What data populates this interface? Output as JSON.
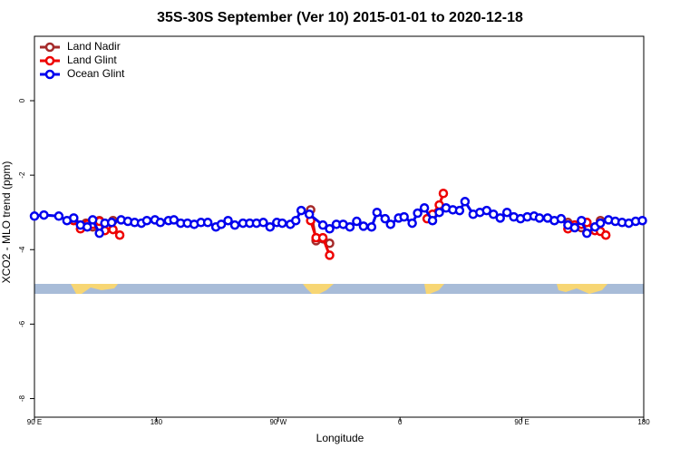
{
  "chart_data": {
    "type": "line",
    "title": "35S-30S September (Ver 10)   2015-01-01 to 2020-12-18",
    "xlabel": "Longitude",
    "ylabel": "XCO2 - MLO trend (ppm)",
    "xlim": [
      90,
      540
    ],
    "ylim": [
      -8.5,
      1.73
    ],
    "xticks": [
      {
        "value": 90,
        "label": "90 E"
      },
      180,
      {
        "value": 270,
        "label": "90 W"
      },
      {
        "value": 360,
        "label": "0"
      },
      {
        "value": 450,
        "label": "90 E"
      },
      {
        "value": 540,
        "label": "180"
      }
    ],
    "yticks": [
      0,
      -2,
      -4,
      -6,
      -8
    ],
    "legend": "top-left",
    "series": [
      {
        "name": "Land Nadir",
        "color": "#a52a2a",
        "x": [
          128,
          133,
          138,
          143,
          148,
          null,
          294,
          298,
          303,
          308,
          null,
          484,
          489,
          494,
          498,
          504,
          508
        ],
        "values": [
          -3.29,
          -3.39,
          -3.22,
          -3.39,
          -3.22,
          null,
          -2.93,
          -3.76,
          -3.71,
          -3.83,
          null,
          -3.27,
          -3.34,
          -3.41,
          -3.27,
          -3.39,
          -3.22
        ]
      },
      {
        "name": "Land Glint",
        "color": "#ee0000",
        "x": [
          119,
          124,
          129,
          133,
          138,
          142,
          148,
          153,
          null,
          294,
          298,
          303,
          308,
          null,
          380,
          384,
          389,
          392,
          null,
          484,
          489,
          494,
          498,
          504,
          508,
          512
        ],
        "values": [
          -3.22,
          -3.44,
          -3.32,
          -3.32,
          -3.24,
          -3.49,
          -3.46,
          -3.61,
          null,
          -3.22,
          -3.68,
          -3.68,
          -4.15,
          null,
          -3.17,
          -3.05,
          -2.8,
          -2.49,
          null,
          -3.44,
          -3.34,
          -3.32,
          -3.27,
          -3.49,
          -3.51,
          -3.61
        ]
      },
      {
        "name": "Ocean Glint",
        "color": "#0000ee",
        "x": [
          90,
          97,
          108,
          114,
          119,
          124,
          129,
          133,
          138,
          142,
          147,
          154,
          159,
          164,
          169,
          173,
          179,
          183,
          189,
          193,
          198,
          203,
          208,
          213,
          218,
          224,
          228,
          233,
          238,
          244,
          249,
          254,
          259,
          264,
          269,
          273,
          279,
          283,
          287,
          293,
          303,
          308,
          313,
          318,
          323,
          328,
          333,
          339,
          343,
          349,
          353,
          359,
          363,
          369,
          373,
          378,
          384,
          389,
          394,
          399,
          404,
          408,
          414,
          419,
          424,
          429,
          434,
          439,
          444,
          449,
          454,
          459,
          463,
          469,
          474,
          479,
          484,
          489,
          494,
          498,
          504,
          508,
          514,
          519,
          524,
          529,
          534,
          539
        ],
        "values": [
          -3.1,
          -3.07,
          -3.1,
          -3.22,
          -3.15,
          -3.34,
          -3.39,
          -3.2,
          -3.56,
          -3.29,
          -3.27,
          -3.2,
          -3.24,
          -3.27,
          -3.29,
          -3.22,
          -3.2,
          -3.27,
          -3.22,
          -3.2,
          -3.29,
          -3.29,
          -3.32,
          -3.27,
          -3.27,
          -3.39,
          -3.32,
          -3.22,
          -3.34,
          -3.29,
          -3.29,
          -3.29,
          -3.27,
          -3.39,
          -3.27,
          -3.29,
          -3.32,
          -3.22,
          -2.95,
          -3.05,
          -3.34,
          -3.44,
          -3.32,
          -3.32,
          -3.39,
          -3.24,
          -3.37,
          -3.39,
          -3.0,
          -3.17,
          -3.32,
          -3.15,
          -3.12,
          -3.29,
          -3.02,
          -2.88,
          -3.22,
          -3.0,
          -2.88,
          -2.93,
          -2.95,
          -2.71,
          -3.05,
          -3.0,
          -2.95,
          -3.05,
          -3.15,
          -3.0,
          -3.12,
          -3.17,
          -3.12,
          -3.1,
          -3.15,
          -3.15,
          -3.22,
          -3.17,
          -3.34,
          -3.41,
          -3.22,
          -3.56,
          -3.39,
          -3.29,
          -3.2,
          -3.24,
          -3.27,
          -3.29,
          -3.24,
          -3.22
        ]
      }
    ]
  }
}
